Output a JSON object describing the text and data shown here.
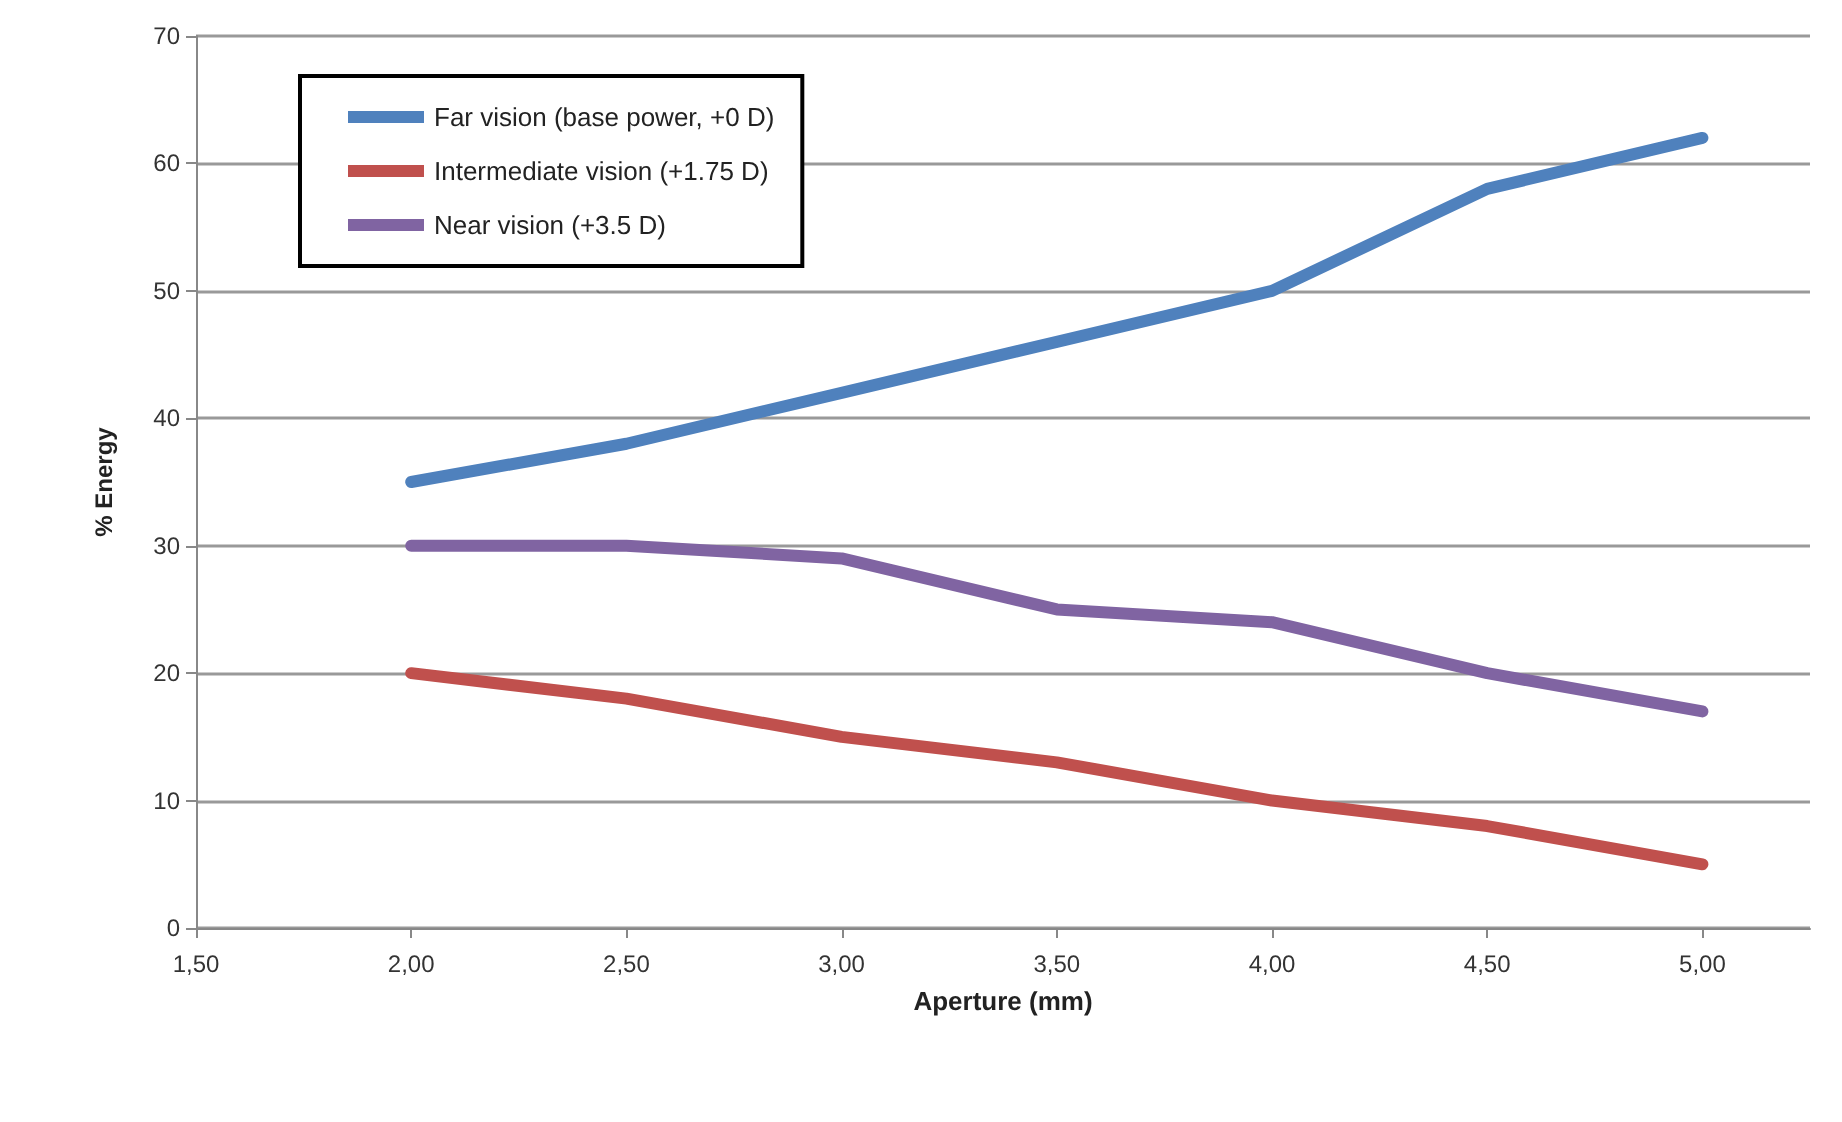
{
  "chart_data": {
    "type": "line",
    "xlabel": "Aperture (mm)",
    "ylabel": "% Energy",
    "x": [
      2.0,
      2.5,
      3.0,
      3.5,
      4.0,
      4.5,
      5.0
    ],
    "series": [
      {
        "name": "Far vision (base power, +0 D)",
        "color": "#4f81bd",
        "values": [
          35,
          38,
          42,
          46,
          50,
          58,
          62
        ]
      },
      {
        "name": "Intermediate vision (+1.75 D)",
        "color": "#c0504d",
        "values": [
          20,
          18,
          15,
          13,
          10,
          8,
          5
        ]
      },
      {
        "name": "Near vision (+3.5 D)",
        "color": "#8064a2",
        "values": [
          30,
          30,
          29,
          25,
          24,
          20,
          17
        ]
      }
    ],
    "xlim": [
      1.5,
      5.25
    ],
    "xticks": [
      {
        "value": 1.5,
        "label": "1,50"
      },
      {
        "value": 2.0,
        "label": "2,00"
      },
      {
        "value": 2.5,
        "label": "2,50"
      },
      {
        "value": 3.0,
        "label": "3,00"
      },
      {
        "value": 3.5,
        "label": "3,50"
      },
      {
        "value": 4.0,
        "label": "4,00"
      },
      {
        "value": 4.5,
        "label": "4,50"
      },
      {
        "value": 5.0,
        "label": "5,00"
      }
    ],
    "ylim": [
      0,
      70
    ],
    "yticks": [
      0,
      10,
      20,
      30,
      40,
      50,
      60,
      70
    ],
    "grid": "y",
    "legend": "top left",
    "marker": "none",
    "line_style": "solid"
  }
}
